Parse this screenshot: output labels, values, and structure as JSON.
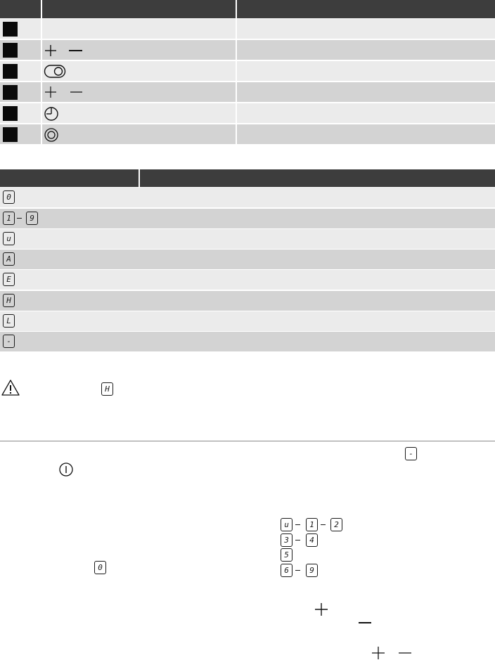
{
  "controls_table": {
    "rows": [
      {
        "icon": "none"
      },
      {
        "icon": "plus-minus-icon"
      },
      {
        "icon": "toggle-icon"
      },
      {
        "icon": "plus-minus-icon"
      },
      {
        "icon": "timer-icon"
      },
      {
        "icon": "ring-icon"
      }
    ]
  },
  "display_table": {
    "rows": [
      {
        "glyphs": [
          "0"
        ]
      },
      {
        "glyphs": [
          "1",
          "9"
        ]
      },
      {
        "glyphs": [
          "u"
        ]
      },
      {
        "glyphs": [
          "A"
        ]
      },
      {
        "glyphs": [
          "E"
        ]
      },
      {
        "glyphs": [
          "H"
        ]
      },
      {
        "glyphs": [
          "L"
        ]
      },
      {
        "glyphs": [
          "-"
        ]
      }
    ]
  },
  "warning": {
    "glyph": "H"
  },
  "bottom": {
    "dash_glyph": "-",
    "zero_glyph": "0",
    "levels": [
      {
        "glyphs": [
          "u",
          "1",
          "2"
        ]
      },
      {
        "glyphs": [
          "3",
          "4"
        ]
      },
      {
        "glyphs": [
          "5"
        ]
      },
      {
        "glyphs": [
          "6",
          "9"
        ]
      }
    ]
  }
}
